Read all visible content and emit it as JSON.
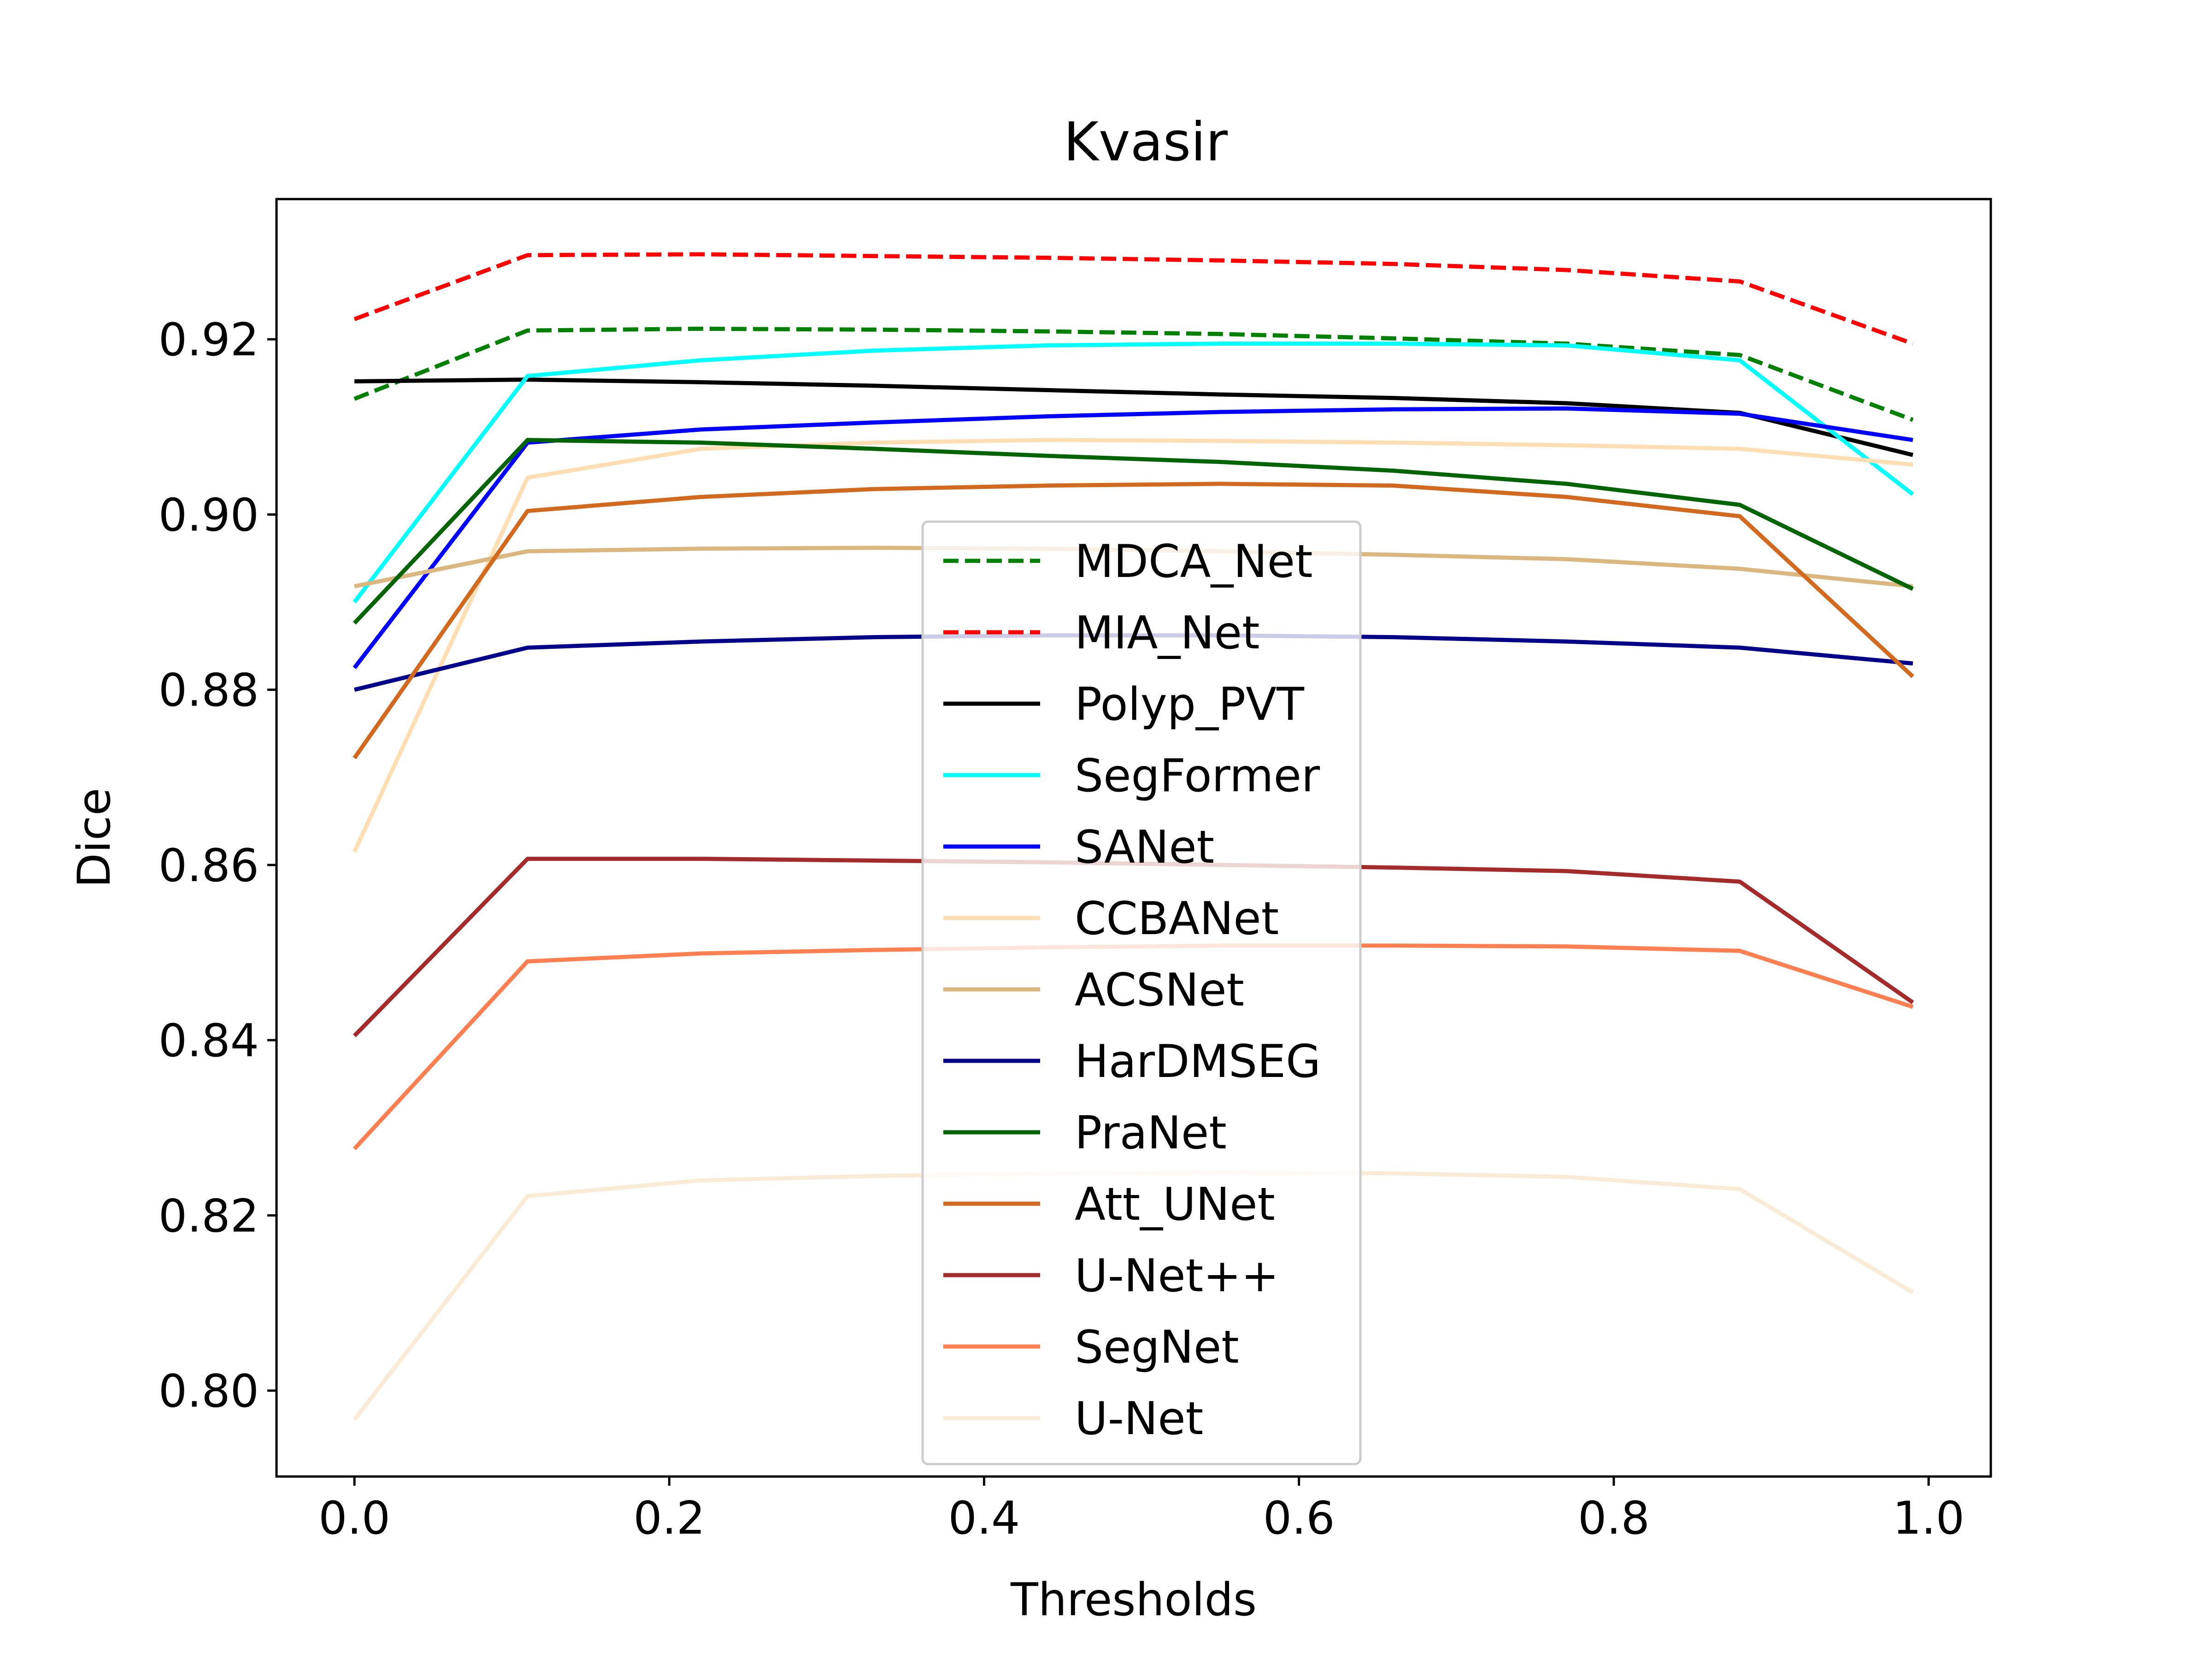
{
  "chart_data": {
    "type": "line",
    "title": "Kvasir",
    "xlabel": "Thresholds",
    "ylabel": "Dice",
    "xlim": [
      -0.0495,
      1.0395
    ],
    "ylim": [
      0.7902,
      0.936
    ],
    "xticks": [
      0.0,
      0.2,
      0.4,
      0.6,
      0.8,
      1.0
    ],
    "xtick_labels": [
      "0.0",
      "0.2",
      "0.4",
      "0.6",
      "0.8",
      "1.0"
    ],
    "yticks": [
      0.8,
      0.82,
      0.84,
      0.86,
      0.88,
      0.9,
      0.92
    ],
    "ytick_labels": [
      "0.80",
      "0.82",
      "0.84",
      "0.86",
      "0.88",
      "0.90",
      "0.92"
    ],
    "grid": false,
    "legend_position": "center",
    "x": [
      0.0,
      0.11,
      0.22,
      0.33,
      0.44,
      0.55,
      0.66,
      0.77,
      0.88,
      0.99
    ],
    "series": [
      {
        "name": "MDCA_Net",
        "color": "#008000",
        "dashed": true,
        "values": [
          0.9132,
          0.921,
          0.9212,
          0.9211,
          0.9209,
          0.9206,
          0.9201,
          0.9195,
          0.9182,
          0.9108
        ]
      },
      {
        "name": "MIA_Net",
        "color": "#ff0000",
        "dashed": true,
        "values": [
          0.9223,
          0.9296,
          0.9297,
          0.9295,
          0.9293,
          0.929,
          0.9286,
          0.9279,
          0.9266,
          0.9195
        ]
      },
      {
        "name": "Polyp_PVT",
        "color": "#000000",
        "dashed": false,
        "values": [
          0.9152,
          0.9154,
          0.9151,
          0.9147,
          0.9142,
          0.9137,
          0.9133,
          0.9127,
          0.9116,
          0.9068
        ]
      },
      {
        "name": "SegFormer",
        "color": "#00ffff",
        "dashed": false,
        "values": [
          0.89,
          0.9158,
          0.9176,
          0.9187,
          0.9193,
          0.9195,
          0.9195,
          0.9193,
          0.9176,
          0.9023
        ]
      },
      {
        "name": "SANet",
        "color": "#0000ff",
        "dashed": false,
        "values": [
          0.8825,
          0.9082,
          0.9097,
          0.9105,
          0.9112,
          0.9117,
          0.912,
          0.9121,
          0.9115,
          0.9085
        ]
      },
      {
        "name": "CCBANet",
        "color": "#ffdeb3",
        "dashed": false,
        "values": [
          0.8615,
          0.9042,
          0.9075,
          0.9082,
          0.9085,
          0.9084,
          0.9082,
          0.9079,
          0.9075,
          0.9057
        ]
      },
      {
        "name": "ACSNet",
        "color": "#dbb67f",
        "dashed": false,
        "values": [
          0.8918,
          0.8958,
          0.8961,
          0.8962,
          0.8961,
          0.8958,
          0.8954,
          0.8949,
          0.8938,
          0.8918
        ]
      },
      {
        "name": "HarDMSEG",
        "color": "#00008b",
        "dashed": false,
        "values": [
          0.88,
          0.8848,
          0.8855,
          0.886,
          0.8862,
          0.8862,
          0.886,
          0.8855,
          0.8848,
          0.883
        ]
      },
      {
        "name": "PraNet",
        "color": "#006400",
        "dashed": false,
        "values": [
          0.8876,
          0.9085,
          0.9082,
          0.9075,
          0.9067,
          0.906,
          0.905,
          0.9035,
          0.9011,
          0.8915
        ]
      },
      {
        "name": "Att_UNet",
        "color": "#d2691e",
        "dashed": false,
        "values": [
          0.8722,
          0.9004,
          0.902,
          0.9029,
          0.9033,
          0.9035,
          0.9033,
          0.902,
          0.8998,
          0.8815
        ]
      },
      {
        "name": "U-Net++",
        "color": "#a52a2a",
        "dashed": false,
        "values": [
          0.8405,
          0.8607,
          0.8607,
          0.8605,
          0.8603,
          0.86,
          0.8597,
          0.8593,
          0.8581,
          0.8443
        ]
      },
      {
        "name": "SegNet",
        "color": "#ff7f50",
        "dashed": false,
        "values": [
          0.8276,
          0.849,
          0.8499,
          0.8503,
          0.8506,
          0.8508,
          0.8508,
          0.8507,
          0.8502,
          0.8438
        ]
      },
      {
        "name": "U-Net",
        "color": "#faebd7",
        "dashed": false,
        "values": [
          0.7967,
          0.8222,
          0.824,
          0.8245,
          0.8248,
          0.8249,
          0.8248,
          0.8244,
          0.823,
          0.8112
        ]
      }
    ]
  }
}
